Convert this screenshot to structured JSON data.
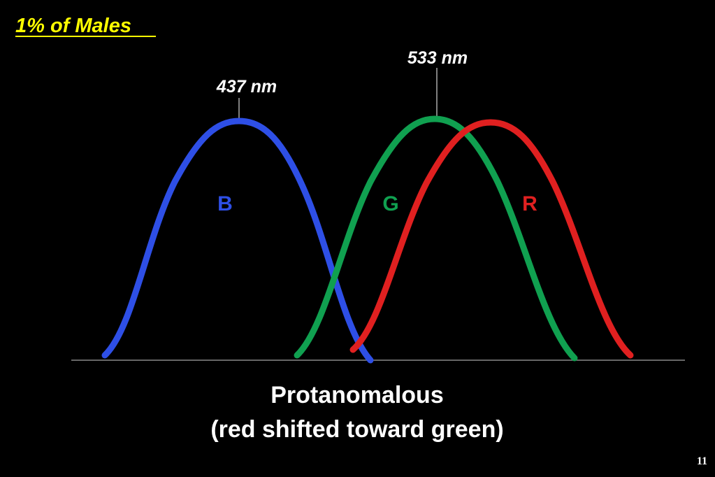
{
  "title": "1% of Males",
  "peak_labels": [
    "437 nm",
    "533 nm"
  ],
  "curves": [
    {
      "label": "B"
    },
    {
      "label": "G"
    },
    {
      "label": "R"
    }
  ],
  "caption": [
    "Protanomalous",
    "(red shifted toward green)"
  ],
  "page_number": "11"
}
